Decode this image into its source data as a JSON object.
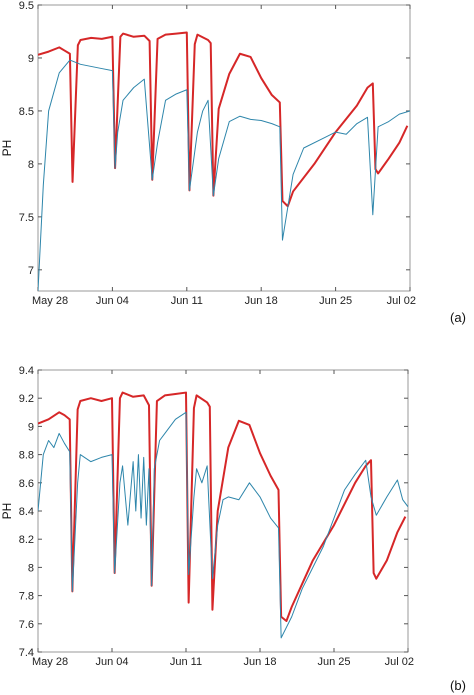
{
  "chart_data": [
    {
      "type": "line",
      "panel_label": "(a)",
      "ylabel": "PH",
      "ylim": [
        6.8,
        9.5
      ],
      "yticks": [
        "7",
        "7.5",
        "8",
        "8.5",
        "9",
        "9.5"
      ],
      "ytick_values": [
        7,
        7.5,
        8,
        8.5,
        9,
        9.5
      ],
      "xlim": [
        "2017-05-28",
        "2017-07-02"
      ],
      "xticks": [
        "May 28",
        "Jun 04",
        "Jun 11",
        "Jun 18",
        "Jun 25",
        "Jul 02"
      ],
      "grid": false,
      "series": [
        {
          "color": "#d62728",
          "line_width": 2,
          "points": [
            [
              "2017-05-28",
              9.03
            ],
            [
              "2017-05-29",
              9.06
            ],
            [
              "2017-05-30",
              9.1
            ],
            [
              "2017-05-30T12",
              9.07
            ],
            [
              "2017-05-31",
              9.04
            ],
            [
              "2017-05-31T06",
              7.83
            ],
            [
              "2017-05-31T18",
              9.12
            ],
            [
              "2017-06-01",
              9.17
            ],
            [
              "2017-06-02",
              9.19
            ],
            [
              "2017-06-03",
              9.18
            ],
            [
              "2017-06-04",
              9.2
            ],
            [
              "2017-06-04T06",
              7.96
            ],
            [
              "2017-06-04T18",
              9.2
            ],
            [
              "2017-06-05",
              9.23
            ],
            [
              "2017-06-06",
              9.2
            ],
            [
              "2017-06-07",
              9.21
            ],
            [
              "2017-06-07T12",
              9.16
            ],
            [
              "2017-06-07T18",
              7.85
            ],
            [
              "2017-06-08T06",
              9.18
            ],
            [
              "2017-06-09",
              9.22
            ],
            [
              "2017-06-10",
              9.23
            ],
            [
              "2017-06-11",
              9.24
            ],
            [
              "2017-06-11T06",
              7.75
            ],
            [
              "2017-06-11T18",
              9.13
            ],
            [
              "2017-06-12",
              9.22
            ],
            [
              "2017-06-13",
              9.17
            ],
            [
              "2017-06-13T06",
              9.14
            ],
            [
              "2017-06-13T12",
              7.7
            ],
            [
              "2017-06-14T00",
              8.52
            ],
            [
              "2017-06-15",
              8.85
            ],
            [
              "2017-06-16",
              9.04
            ],
            [
              "2017-06-17",
              9.01
            ],
            [
              "2017-06-18",
              8.81
            ],
            [
              "2017-06-19",
              8.65
            ],
            [
              "2017-06-19T18",
              8.58
            ],
            [
              "2017-06-20",
              7.65
            ],
            [
              "2017-06-20T12",
              7.6
            ],
            [
              "2017-06-21",
              7.74
            ],
            [
              "2017-06-23",
              8.0
            ],
            [
              "2017-06-25",
              8.3
            ],
            [
              "2017-06-27",
              8.55
            ],
            [
              "2017-06-28",
              8.72
            ],
            [
              "2017-06-28T12",
              8.76
            ],
            [
              "2017-06-28T18",
              7.95
            ],
            [
              "2017-06-29",
              7.91
            ],
            [
              "2017-06-30",
              8.05
            ],
            [
              "2017-07-01",
              8.2
            ],
            [
              "2017-07-01T18",
              8.36
            ]
          ]
        },
        {
          "color": "#2e86ab",
          "line_width": 1,
          "points": [
            [
              "2017-05-28",
              6.8
            ],
            [
              "2017-05-28T12",
              7.8
            ],
            [
              "2017-05-29",
              8.5
            ],
            [
              "2017-05-30",
              8.86
            ],
            [
              "2017-05-31",
              8.98
            ],
            [
              "2017-06-01",
              8.94
            ],
            [
              "2017-06-02",
              8.92
            ],
            [
              "2017-06-03",
              8.9
            ],
            [
              "2017-06-04",
              8.88
            ],
            [
              "2017-06-04T06",
              7.96
            ],
            [
              "2017-06-04T12",
              8.3
            ],
            [
              "2017-06-05",
              8.6
            ],
            [
              "2017-06-06",
              8.72
            ],
            [
              "2017-06-07",
              8.8
            ],
            [
              "2017-06-07T18",
              7.85
            ],
            [
              "2017-06-08T06",
              8.2
            ],
            [
              "2017-06-09",
              8.6
            ],
            [
              "2017-06-10",
              8.66
            ],
            [
              "2017-06-11",
              8.7
            ],
            [
              "2017-06-11T06",
              7.75
            ],
            [
              "2017-06-12",
              8.3
            ],
            [
              "2017-06-12T12",
              8.5
            ],
            [
              "2017-06-13",
              8.6
            ],
            [
              "2017-06-13T12",
              7.7
            ],
            [
              "2017-06-14",
              8.05
            ],
            [
              "2017-06-15",
              8.4
            ],
            [
              "2017-06-16",
              8.45
            ],
            [
              "2017-06-17",
              8.42
            ],
            [
              "2017-06-18",
              8.41
            ],
            [
              "2017-06-19",
              8.38
            ],
            [
              "2017-06-19T18",
              8.35
            ],
            [
              "2017-06-20",
              7.28
            ],
            [
              "2017-06-21",
              7.9
            ],
            [
              "2017-06-22",
              8.15
            ],
            [
              "2017-06-24",
              8.25
            ],
            [
              "2017-06-25",
              8.3
            ],
            [
              "2017-06-26",
              8.28
            ],
            [
              "2017-06-27",
              8.38
            ],
            [
              "2017-06-28",
              8.44
            ],
            [
              "2017-06-28T12",
              7.52
            ],
            [
              "2017-06-29",
              8.35
            ],
            [
              "2017-06-30",
              8.4
            ],
            [
              "2017-07-01",
              8.47
            ],
            [
              "2017-07-02",
              8.5
            ]
          ]
        }
      ]
    },
    {
      "type": "line",
      "panel_label": "(b)",
      "ylabel": "PH",
      "ylim": [
        7.4,
        9.4
      ],
      "yticks": [
        "7.4",
        "7.6",
        "7.8",
        "8",
        "8.2",
        "8.4",
        "8.6",
        "8.8",
        "9",
        "9.2",
        "9.4"
      ],
      "ytick_values": [
        7.4,
        7.6,
        7.8,
        8.0,
        8.2,
        8.4,
        8.6,
        8.8,
        9.0,
        9.2,
        9.4
      ],
      "xlim": [
        "2017-05-28",
        "2017-07-02"
      ],
      "xticks": [
        "May 28",
        "Jun 04",
        "Jun 11",
        "Jun 18",
        "Jun 25",
        "Jul 02"
      ],
      "grid": false,
      "series": [
        {
          "color": "#d62728",
          "line_width": 2,
          "points": [
            [
              "2017-05-28",
              9.02
            ],
            [
              "2017-05-29",
              9.05
            ],
            [
              "2017-05-30",
              9.1
            ],
            [
              "2017-05-30T12",
              9.08
            ],
            [
              "2017-05-31",
              9.05
            ],
            [
              "2017-05-31T06",
              7.83
            ],
            [
              "2017-05-31T18",
              9.12
            ],
            [
              "2017-06-01",
              9.18
            ],
            [
              "2017-06-02",
              9.2
            ],
            [
              "2017-06-03",
              9.18
            ],
            [
              "2017-06-04",
              9.2
            ],
            [
              "2017-06-04T06",
              7.96
            ],
            [
              "2017-06-04T18",
              9.2
            ],
            [
              "2017-06-05",
              9.24
            ],
            [
              "2017-06-06",
              9.21
            ],
            [
              "2017-06-07",
              9.22
            ],
            [
              "2017-06-07T12",
              9.15
            ],
            [
              "2017-06-07T18",
              7.87
            ],
            [
              "2017-06-08T06",
              9.18
            ],
            [
              "2017-06-09",
              9.22
            ],
            [
              "2017-06-10",
              9.23
            ],
            [
              "2017-06-11",
              9.24
            ],
            [
              "2017-06-11T06",
              7.75
            ],
            [
              "2017-06-11T18",
              9.13
            ],
            [
              "2017-06-12",
              9.22
            ],
            [
              "2017-06-13",
              9.17
            ],
            [
              "2017-06-13T06",
              9.14
            ],
            [
              "2017-06-13T12",
              7.7
            ],
            [
              "2017-06-14",
              8.4
            ],
            [
              "2017-06-15",
              8.85
            ],
            [
              "2017-06-16",
              9.04
            ],
            [
              "2017-06-17",
              9.01
            ],
            [
              "2017-06-18",
              8.81
            ],
            [
              "2017-06-19",
              8.65
            ],
            [
              "2017-06-19T18",
              8.55
            ],
            [
              "2017-06-20",
              7.65
            ],
            [
              "2017-06-20T12",
              7.62
            ],
            [
              "2017-06-21",
              7.72
            ],
            [
              "2017-06-23",
              8.05
            ],
            [
              "2017-06-25",
              8.3
            ],
            [
              "2017-06-27",
              8.6
            ],
            [
              "2017-06-28",
              8.72
            ],
            [
              "2017-06-28T12",
              8.76
            ],
            [
              "2017-06-28T18",
              7.96
            ],
            [
              "2017-06-29",
              7.92
            ],
            [
              "2017-06-30",
              8.05
            ],
            [
              "2017-07-01",
              8.25
            ],
            [
              "2017-07-01T18",
              8.36
            ]
          ]
        },
        {
          "color": "#2e86ab",
          "line_width": 1,
          "points": [
            [
              "2017-05-28",
              8.4
            ],
            [
              "2017-05-28T12",
              8.8
            ],
            [
              "2017-05-29",
              8.9
            ],
            [
              "2017-05-29T12",
              8.85
            ],
            [
              "2017-05-30",
              8.95
            ],
            [
              "2017-05-30T12",
              8.88
            ],
            [
              "2017-05-31",
              8.82
            ],
            [
              "2017-05-31T06",
              7.83
            ],
            [
              "2017-05-31T18",
              8.6
            ],
            [
              "2017-06-01",
              8.8
            ],
            [
              "2017-06-02",
              8.75
            ],
            [
              "2017-06-03",
              8.78
            ],
            [
              "2017-06-04",
              8.8
            ],
            [
              "2017-06-04T06",
              7.96
            ],
            [
              "2017-06-04T18",
              8.6
            ],
            [
              "2017-06-05",
              8.72
            ],
            [
              "2017-06-05T12",
              8.3
            ],
            [
              "2017-06-06",
              8.75
            ],
            [
              "2017-06-06T06",
              8.4
            ],
            [
              "2017-06-06T12",
              8.8
            ],
            [
              "2017-06-06T18",
              8.35
            ],
            [
              "2017-06-07",
              8.78
            ],
            [
              "2017-06-07T06",
              8.3
            ],
            [
              "2017-06-07T12",
              8.7
            ],
            [
              "2017-06-07T18",
              7.87
            ],
            [
              "2017-06-08",
              8.7
            ],
            [
              "2017-06-08T12",
              8.9
            ],
            [
              "2017-06-09",
              8.95
            ],
            [
              "2017-06-10",
              9.05
            ],
            [
              "2017-06-11",
              9.1
            ],
            [
              "2017-06-11T06",
              7.95
            ],
            [
              "2017-06-11T18",
              8.5
            ],
            [
              "2017-06-12",
              8.7
            ],
            [
              "2017-06-12T12",
              8.6
            ],
            [
              "2017-06-13",
              8.72
            ],
            [
              "2017-06-13T12",
              7.92
            ],
            [
              "2017-06-14",
              8.3
            ],
            [
              "2017-06-14T12",
              8.48
            ],
            [
              "2017-06-15",
              8.5
            ],
            [
              "2017-06-16",
              8.48
            ],
            [
              "2017-06-17",
              8.6
            ],
            [
              "2017-06-18",
              8.5
            ],
            [
              "2017-06-19",
              8.35
            ],
            [
              "2017-06-19T18",
              8.28
            ],
            [
              "2017-06-20",
              7.5
            ],
            [
              "2017-06-21",
              7.65
            ],
            [
              "2017-06-22",
              7.85
            ],
            [
              "2017-06-23",
              8.0
            ],
            [
              "2017-06-24",
              8.15
            ],
            [
              "2017-06-25",
              8.35
            ],
            [
              "2017-06-26",
              8.55
            ],
            [
              "2017-06-27",
              8.66
            ],
            [
              "2017-06-28",
              8.76
            ],
            [
              "2017-06-28T12",
              8.5
            ],
            [
              "2017-06-29",
              8.37
            ],
            [
              "2017-06-30",
              8.5
            ],
            [
              "2017-07-01",
              8.62
            ],
            [
              "2017-07-01T12",
              8.48
            ],
            [
              "2017-07-02",
              8.43
            ]
          ]
        }
      ]
    }
  ]
}
